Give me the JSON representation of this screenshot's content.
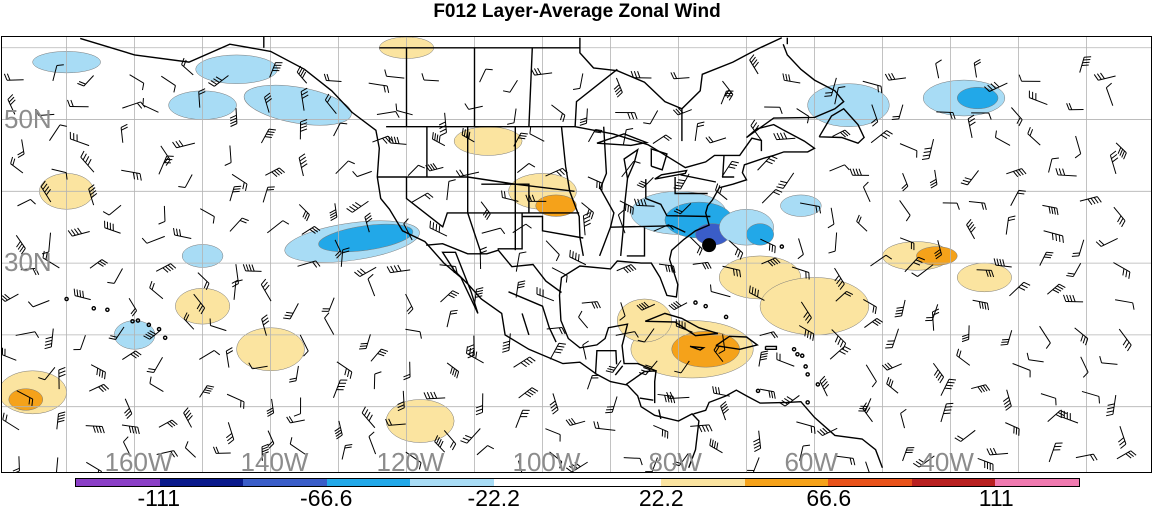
{
  "title": "F012 Layer-Average Zonal Wind",
  "lat_labels": [
    {
      "text": "50N",
      "lat": 50
    },
    {
      "text": "30N",
      "lat": 30
    }
  ],
  "lon_labels": [
    {
      "text": "160W",
      "lon": -160
    },
    {
      "text": "140W",
      "lon": -140
    },
    {
      "text": "120W",
      "lon": -120
    },
    {
      "text": "100W",
      "lon": -100
    },
    {
      "text": "80W",
      "lon": -80
    },
    {
      "text": "60W",
      "lon": -60
    },
    {
      "text": "40W",
      "lon": -40
    }
  ],
  "colorbar": {
    "colors": [
      "#8b3fc7",
      "#0a1a8c",
      "#3a5dc8",
      "#22a8e8",
      "#a8dcf5",
      "#ffffff",
      "#ffffff",
      "#fbe4a0",
      "#f5a21a",
      "#e8521a",
      "#b82020",
      "#f07ab0"
    ],
    "labels": [
      "-111",
      "-66.6",
      "-22.2",
      "22.2",
      "66.6",
      "111"
    ]
  },
  "marker": {
    "name": "storm-center",
    "lat": 32.5,
    "lon": -75.5,
    "color": "#000000"
  }
}
